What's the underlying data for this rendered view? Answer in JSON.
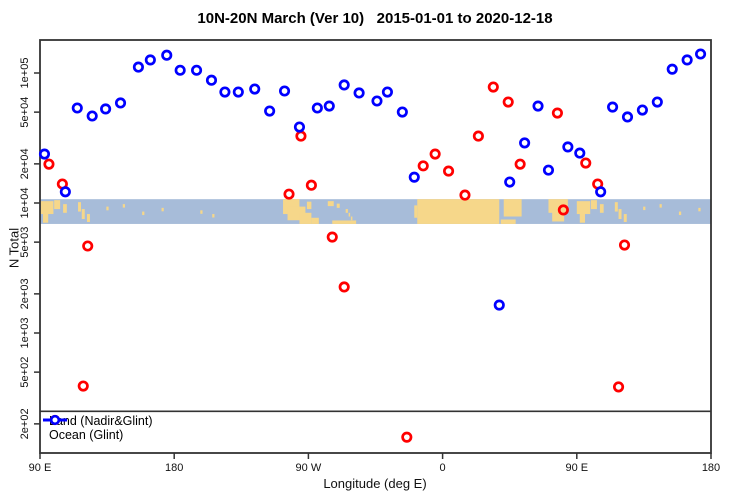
{
  "chart_data": {
    "type": "scatter",
    "title": "10N-20N March (Ver 10)   2015-01-01 to 2020-12-18",
    "xlabel": "Longitude (deg E)",
    "ylabel": "N Total",
    "x_axis": {
      "unit": "deg E",
      "range_deg": [
        90,
        540
      ],
      "ticks": [
        {
          "label": "90 E",
          "lon": 90
        },
        {
          "label": "180",
          "lon": 180
        },
        {
          "label": "90 W",
          "lon": 270
        },
        {
          "label": "0",
          "lon": 360
        },
        {
          "label": "90 E",
          "lon": 450
        },
        {
          "label": "180",
          "lon": 540
        }
      ]
    },
    "y_axis": {
      "scale": "log",
      "range": [
        119,
        179000
      ],
      "ticks": [
        {
          "label": "1e+05",
          "value": 100000
        },
        {
          "label": "5e+04",
          "value": 50000
        },
        {
          "label": "2e+04",
          "value": 20000
        },
        {
          "label": "1e+04",
          "value": 10000
        },
        {
          "label": "5e+03",
          "value": 5000
        },
        {
          "label": "2e+03",
          "value": 2000
        },
        {
          "label": "1e+03",
          "value": 1000
        },
        {
          "label": "5e+02",
          "value": 500
        },
        {
          "label": "2e+02",
          "value": 200
        }
      ]
    },
    "reference_line": {
      "value": 250,
      "color": "#333333"
    },
    "legend": {
      "position": "bottom-left"
    },
    "map_band": {
      "value_top": 10700,
      "value_bottom": 6900,
      "ocean_color": "#a7bcd9",
      "land_color": "#f6d78a",
      "land_patches": [
        {
          "lon": [
            90,
            99
          ],
          "v": [
            0.08,
            0.6
          ]
        },
        {
          "lon": [
            92,
            95.5
          ],
          "v": [
            0.55,
            0.95
          ]
        },
        {
          "lon": [
            99.5,
            103.5
          ],
          "v": [
            0.04,
            0.4
          ]
        },
        {
          "lon": [
            105.5,
            108
          ],
          "v": [
            0.2,
            0.55
          ]
        },
        {
          "lon": [
            115.5,
            117.5
          ],
          "v": [
            0.12,
            0.5
          ]
        },
        {
          "lon": [
            118,
            120
          ],
          "v": [
            0.4,
            0.8
          ]
        },
        {
          "lon": [
            121.5,
            123.5
          ],
          "v": [
            0.6,
            0.92
          ]
        },
        {
          "lon": [
            134.5,
            136
          ],
          "v": [
            0.3,
            0.45
          ]
        },
        {
          "lon": [
            145.5,
            147
          ],
          "v": [
            0.2,
            0.34
          ]
        },
        {
          "lon": [
            158.5,
            160
          ],
          "v": [
            0.5,
            0.64
          ]
        },
        {
          "lon": [
            171.5,
            173
          ],
          "v": [
            0.35,
            0.49
          ]
        },
        {
          "lon": [
            197.5,
            199
          ],
          "v": [
            0.45,
            0.59
          ]
        },
        {
          "lon": [
            205.5,
            207
          ],
          "v": [
            0.6,
            0.74
          ]
        },
        {
          "lon": [
            253,
            264
          ],
          "v": [
            0.0,
            0.6
          ]
        },
        {
          "lon": [
            256,
            268
          ],
          "v": [
            0.3,
            0.85
          ]
        },
        {
          "lon": [
            264,
            272
          ],
          "v": [
            0.55,
            1.0
          ]
        },
        {
          "lon": [
            269,
            272
          ],
          "v": [
            0.1,
            0.4
          ]
        },
        {
          "lon": [
            272,
            277
          ],
          "v": [
            0.75,
            1.0
          ]
        },
        {
          "lon": [
            283,
            287
          ],
          "v": [
            0.08,
            0.28
          ]
        },
        {
          "lon": [
            289,
            291
          ],
          "v": [
            0.18,
            0.35
          ]
        },
        {
          "lon": [
            295,
            296.5
          ],
          "v": [
            0.4,
            0.55
          ]
        },
        {
          "lon": [
            297,
            298
          ],
          "v": [
            0.55,
            0.7
          ]
        },
        {
          "lon": [
            298.5,
            299.5
          ],
          "v": [
            0.7,
            0.85
          ]
        },
        {
          "lon": [
            286,
            302
          ],
          "v": [
            0.86,
            1.0
          ]
        },
        {
          "lon": [
            341,
            343
          ],
          "v": [
            0.25,
            0.75
          ]
        },
        {
          "lon": [
            343,
            398
          ],
          "v": [
            0.0,
            1.0
          ]
        },
        {
          "lon": [
            401,
            413
          ],
          "v": [
            0.0,
            0.7
          ]
        },
        {
          "lon": [
            399,
            409
          ],
          "v": [
            0.82,
            1.0
          ]
        },
        {
          "lon": [
            431,
            444
          ],
          "v": [
            0.0,
            0.55
          ]
        },
        {
          "lon": [
            433.5,
            441.5
          ],
          "v": [
            0.5,
            0.9
          ]
        },
        {
          "lon": [
            450,
            459
          ],
          "v": [
            0.08,
            0.6
          ]
        },
        {
          "lon": [
            452,
            455.5
          ],
          "v": [
            0.55,
            0.95
          ]
        },
        {
          "lon": [
            459.5,
            463.5
          ],
          "v": [
            0.04,
            0.4
          ]
        },
        {
          "lon": [
            465.5,
            468
          ],
          "v": [
            0.2,
            0.55
          ]
        },
        {
          "lon": [
            475.5,
            477.5
          ],
          "v": [
            0.12,
            0.5
          ]
        },
        {
          "lon": [
            478,
            480
          ],
          "v": [
            0.4,
            0.8
          ]
        },
        {
          "lon": [
            481.5,
            483.5
          ],
          "v": [
            0.6,
            0.92
          ]
        },
        {
          "lon": [
            494.5,
            496
          ],
          "v": [
            0.3,
            0.44
          ]
        },
        {
          "lon": [
            505.5,
            507
          ],
          "v": [
            0.2,
            0.34
          ]
        },
        {
          "lon": [
            518.5,
            520
          ],
          "v": [
            0.5,
            0.64
          ]
        },
        {
          "lon": [
            531.5,
            533
          ],
          "v": [
            0.35,
            0.49
          ]
        }
      ]
    },
    "series": [
      {
        "name": "Land (Nadir&Glint)",
        "color": "#ff0000",
        "points": [
          {
            "lon": 96,
            "n": 19900
          },
          {
            "lon": 105,
            "n": 14000
          },
          {
            "lon": 119,
            "n": 391
          },
          {
            "lon": 122,
            "n": 4670
          },
          {
            "lon": 257,
            "n": 11700
          },
          {
            "lon": 265,
            "n": 32700
          },
          {
            "lon": 272,
            "n": 13700
          },
          {
            "lon": 286,
            "n": 5470
          },
          {
            "lon": 294,
            "n": 2260
          },
          {
            "lon": 336,
            "n": 158
          },
          {
            "lon": 347,
            "n": 19300
          },
          {
            "lon": 355,
            "n": 23800
          },
          {
            "lon": 364,
            "n": 17600
          },
          {
            "lon": 375,
            "n": 11500
          },
          {
            "lon": 384,
            "n": 32700
          },
          {
            "lon": 394,
            "n": 78000
          },
          {
            "lon": 404,
            "n": 59800
          },
          {
            "lon": 412,
            "n": 19900
          },
          {
            "lon": 437,
            "n": 49200
          },
          {
            "lon": 441,
            "n": 8840
          },
          {
            "lon": 456,
            "n": 20300
          },
          {
            "lon": 464,
            "n": 14000
          },
          {
            "lon": 478,
            "n": 385
          },
          {
            "lon": 482,
            "n": 4750
          }
        ]
      },
      {
        "name": "Ocean (Glint)",
        "color": "#0000ff",
        "points": [
          {
            "lon": 93,
            "n": 23800
          },
          {
            "lon": 107,
            "n": 12200
          },
          {
            "lon": 115,
            "n": 53800
          },
          {
            "lon": 125,
            "n": 46700
          },
          {
            "lon": 134,
            "n": 52900
          },
          {
            "lon": 144,
            "n": 58800
          },
          {
            "lon": 156,
            "n": 111000
          },
          {
            "lon": 164,
            "n": 126000
          },
          {
            "lon": 175,
            "n": 137000
          },
          {
            "lon": 184,
            "n": 105000
          },
          {
            "lon": 195,
            "n": 105000
          },
          {
            "lon": 205,
            "n": 88000
          },
          {
            "lon": 214,
            "n": 71400
          },
          {
            "lon": 223,
            "n": 71400
          },
          {
            "lon": 234,
            "n": 75300
          },
          {
            "lon": 244,
            "n": 51000
          },
          {
            "lon": 254,
            "n": 72700
          },
          {
            "lon": 264,
            "n": 38400
          },
          {
            "lon": 276,
            "n": 53800
          },
          {
            "lon": 284,
            "n": 55700
          },
          {
            "lon": 294,
            "n": 80900
          },
          {
            "lon": 304,
            "n": 70200
          },
          {
            "lon": 316,
            "n": 60900
          },
          {
            "lon": 323,
            "n": 71400
          },
          {
            "lon": 333,
            "n": 50100
          },
          {
            "lon": 341,
            "n": 15800
          },
          {
            "lon": 398,
            "n": 1640
          },
          {
            "lon": 405,
            "n": 14500
          },
          {
            "lon": 415,
            "n": 29000
          },
          {
            "lon": 424,
            "n": 55700
          },
          {
            "lon": 431,
            "n": 17900
          },
          {
            "lon": 444,
            "n": 27000
          },
          {
            "lon": 452,
            "n": 24200
          },
          {
            "lon": 466,
            "n": 12200
          },
          {
            "lon": 474,
            "n": 54700
          },
          {
            "lon": 484,
            "n": 45900
          },
          {
            "lon": 494,
            "n": 51900
          },
          {
            "lon": 504,
            "n": 59800
          },
          {
            "lon": 514,
            "n": 107000
          },
          {
            "lon": 524,
            "n": 126000
          },
          {
            "lon": 533,
            "n": 140000
          }
        ]
      }
    ]
  }
}
